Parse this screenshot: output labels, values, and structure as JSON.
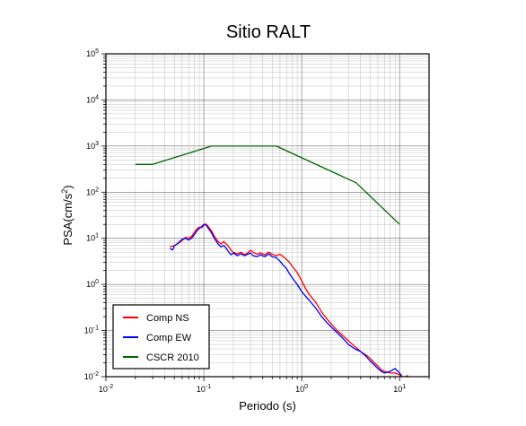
{
  "chart_data": {
    "type": "line",
    "title": "Sitio RALT",
    "xlabel": "Periodo (s)",
    "ylabel": "PSA(cm/s",
    "ylabel_sup": "2",
    "ylabel_suffix": ")",
    "xscale": "log",
    "yscale": "log",
    "xlim": [
      0.01,
      20
    ],
    "ylim": [
      0.01,
      100000
    ],
    "grid": true,
    "legend_position": "bottom-left",
    "x_ticks": [
      {
        "base": "10",
        "exp": "-2",
        "value": 0.01
      },
      {
        "base": "10",
        "exp": "-1",
        "value": 0.1
      },
      {
        "base": "10",
        "exp": "0",
        "value": 1
      },
      {
        "base": "10",
        "exp": "1",
        "value": 10
      }
    ],
    "y_ticks": [
      {
        "base": "10",
        "exp": "-2",
        "value": 0.01
      },
      {
        "base": "10",
        "exp": "-1",
        "value": 0.1
      },
      {
        "base": "10",
        "exp": "0",
        "value": 1
      },
      {
        "base": "10",
        "exp": "1",
        "value": 10
      },
      {
        "base": "10",
        "exp": "2",
        "value": 100
      },
      {
        "base": "10",
        "exp": "3",
        "value": 1000
      },
      {
        "base": "10",
        "exp": "4",
        "value": 10000
      },
      {
        "base": "10",
        "exp": "5",
        "value": 100000
      }
    ],
    "series": [
      {
        "name": "Comp NS",
        "color": "#ff0000",
        "points": [
          [
            0.045,
            6.5
          ],
          [
            0.05,
            7.0
          ],
          [
            0.055,
            7.8
          ],
          [
            0.06,
            9.0
          ],
          [
            0.065,
            10.5
          ],
          [
            0.07,
            10.0
          ],
          [
            0.075,
            11.0
          ],
          [
            0.08,
            13.5
          ],
          [
            0.085,
            16.0
          ],
          [
            0.09,
            17.5
          ],
          [
            0.095,
            17.0
          ],
          [
            0.1,
            19.0
          ],
          [
            0.105,
            20.5
          ],
          [
            0.11,
            18.5
          ],
          [
            0.12,
            14.5
          ],
          [
            0.13,
            10.5
          ],
          [
            0.14,
            8.5
          ],
          [
            0.15,
            7.5
          ],
          [
            0.16,
            8.5
          ],
          [
            0.17,
            7.5
          ],
          [
            0.18,
            6.5
          ],
          [
            0.19,
            5.5
          ],
          [
            0.2,
            5.0
          ],
          [
            0.22,
            4.6
          ],
          [
            0.24,
            5.0
          ],
          [
            0.26,
            4.4
          ],
          [
            0.28,
            4.8
          ],
          [
            0.3,
            5.5
          ],
          [
            0.32,
            5.0
          ],
          [
            0.35,
            4.5
          ],
          [
            0.38,
            4.8
          ],
          [
            0.42,
            4.4
          ],
          [
            0.46,
            5.0
          ],
          [
            0.5,
            4.5
          ],
          [
            0.55,
            4.2
          ],
          [
            0.6,
            4.5
          ],
          [
            0.65,
            4.0
          ],
          [
            0.7,
            3.5
          ],
          [
            0.75,
            3.0
          ],
          [
            0.8,
            2.5
          ],
          [
            0.9,
            1.8
          ],
          [
            1.0,
            1.2
          ],
          [
            1.1,
            0.8
          ],
          [
            1.2,
            0.6
          ],
          [
            1.4,
            0.4
          ],
          [
            1.6,
            0.25
          ],
          [
            1.8,
            0.18
          ],
          [
            2.0,
            0.14
          ],
          [
            2.3,
            0.1
          ],
          [
            2.6,
            0.08
          ],
          [
            3.0,
            0.06
          ],
          [
            3.5,
            0.045
          ],
          [
            4.0,
            0.035
          ],
          [
            4.5,
            0.03
          ],
          [
            5.0,
            0.025
          ],
          [
            5.5,
            0.02
          ],
          [
            6.0,
            0.017
          ],
          [
            6.5,
            0.014
          ],
          [
            7.0,
            0.013
          ],
          [
            8.0,
            0.012
          ],
          [
            9.0,
            0.012
          ],
          [
            10.0,
            0.011
          ],
          [
            11.0,
            0.0095
          ],
          [
            12.0,
            0.0105
          ],
          [
            13.0,
            0.009
          ]
        ]
      },
      {
        "name": "Comp EW",
        "color": "#0000ff",
        "points": [
          [
            0.045,
            6.0
          ],
          [
            0.048,
            5.6
          ],
          [
            0.05,
            6.8
          ],
          [
            0.055,
            8.0
          ],
          [
            0.06,
            9.5
          ],
          [
            0.065,
            10.0
          ],
          [
            0.07,
            9.2
          ],
          [
            0.075,
            10.0
          ],
          [
            0.08,
            12.0
          ],
          [
            0.085,
            14.5
          ],
          [
            0.09,
            16.5
          ],
          [
            0.095,
            18.0
          ],
          [
            0.1,
            20.0
          ],
          [
            0.105,
            19.5
          ],
          [
            0.11,
            17.0
          ],
          [
            0.12,
            13.0
          ],
          [
            0.13,
            9.5
          ],
          [
            0.14,
            7.5
          ],
          [
            0.15,
            6.5
          ],
          [
            0.16,
            7.0
          ],
          [
            0.17,
            6.0
          ],
          [
            0.18,
            5.0
          ],
          [
            0.19,
            4.4
          ],
          [
            0.2,
            4.8
          ],
          [
            0.22,
            4.2
          ],
          [
            0.24,
            4.6
          ],
          [
            0.26,
            4.2
          ],
          [
            0.28,
            4.5
          ],
          [
            0.3,
            4.8
          ],
          [
            0.32,
            4.2
          ],
          [
            0.35,
            4.0
          ],
          [
            0.38,
            4.4
          ],
          [
            0.42,
            4.0
          ],
          [
            0.46,
            4.6
          ],
          [
            0.5,
            4.0
          ],
          [
            0.55,
            3.8
          ],
          [
            0.6,
            3.2
          ],
          [
            0.65,
            2.6
          ],
          [
            0.7,
            2.2
          ],
          [
            0.75,
            1.7
          ],
          [
            0.8,
            1.4
          ],
          [
            0.9,
            1.0
          ],
          [
            1.0,
            0.7
          ],
          [
            1.1,
            0.55
          ],
          [
            1.2,
            0.45
          ],
          [
            1.4,
            0.3
          ],
          [
            1.6,
            0.2
          ],
          [
            1.8,
            0.15
          ],
          [
            2.0,
            0.12
          ],
          [
            2.3,
            0.09
          ],
          [
            2.6,
            0.07
          ],
          [
            3.0,
            0.05
          ],
          [
            3.5,
            0.04
          ],
          [
            4.0,
            0.035
          ],
          [
            4.5,
            0.028
          ],
          [
            5.0,
            0.022
          ],
          [
            5.5,
            0.018
          ],
          [
            6.0,
            0.015
          ],
          [
            6.5,
            0.013
          ],
          [
            7.0,
            0.012
          ],
          [
            8.0,
            0.013
          ],
          [
            9.0,
            0.015
          ],
          [
            10.0,
            0.012
          ],
          [
            11.0,
            0.009
          ]
        ]
      },
      {
        "name": "CSCR 2010",
        "color": "#006400",
        "points": [
          [
            0.02,
            400
          ],
          [
            0.03,
            400
          ],
          [
            0.12,
            1000
          ],
          [
            0.55,
            1000
          ],
          [
            3.6,
            160
          ],
          [
            10.0,
            20
          ]
        ]
      }
    ]
  }
}
